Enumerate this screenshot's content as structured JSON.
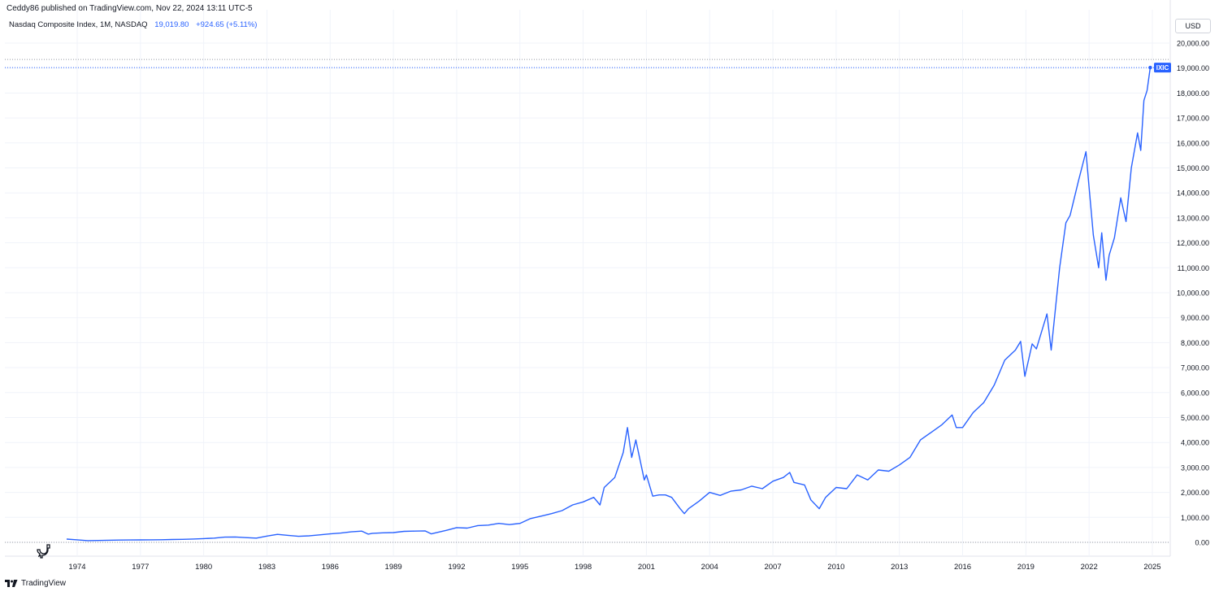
{
  "header": {
    "published_text": "Ceddy86 published on TradingView.com, Nov 22, 2024 13:11 UTC-5"
  },
  "legend": {
    "symbol_text": "Nasdaq Composite Index, 1M, NASDAQ",
    "last_value": "19,019.80",
    "change": "+924.65 (+5.11%)"
  },
  "currency_button": "USD",
  "price_tag": {
    "symbol": "IXIC"
  },
  "footer": {
    "brand": "TradingView"
  },
  "colors": {
    "line": "#2962ff",
    "grid": "#f0f3fa",
    "text": "#131722",
    "accent": "#2962ff"
  },
  "icons": {
    "logo": "tradingview-logo-icon",
    "dino": "dino-icon"
  },
  "chart_data": {
    "type": "line",
    "series": [
      {
        "values": [
          [
            1973.5,
            130
          ],
          [
            1974.0,
            100
          ],
          [
            1974.5,
            70
          ],
          [
            1975.0,
            75
          ],
          [
            1975.5,
            85
          ],
          [
            1976.0,
            90
          ],
          [
            1976.5,
            95
          ],
          [
            1977.0,
            97
          ],
          [
            1977.5,
            100
          ],
          [
            1978.0,
            105
          ],
          [
            1978.5,
            115
          ],
          [
            1979.0,
            120
          ],
          [
            1979.5,
            135
          ],
          [
            1980.0,
            150
          ],
          [
            1980.5,
            170
          ],
          [
            1981.0,
            210
          ],
          [
            1981.5,
            215
          ],
          [
            1982.0,
            190
          ],
          [
            1982.5,
            170
          ],
          [
            1983.0,
            250
          ],
          [
            1983.5,
            320
          ],
          [
            1984.0,
            280
          ],
          [
            1984.5,
            240
          ],
          [
            1985.0,
            260
          ],
          [
            1985.5,
            300
          ],
          [
            1986.0,
            340
          ],
          [
            1986.5,
            370
          ],
          [
            1987.0,
            420
          ],
          [
            1987.5,
            450
          ],
          [
            1987.8,
            330
          ],
          [
            1988.0,
            360
          ],
          [
            1988.5,
            380
          ],
          [
            1989.0,
            390
          ],
          [
            1989.5,
            440
          ],
          [
            1990.0,
            450
          ],
          [
            1990.5,
            460
          ],
          [
            1990.8,
            340
          ],
          [
            1991.0,
            380
          ],
          [
            1991.5,
            480
          ],
          [
            1992.0,
            590
          ],
          [
            1992.5,
            570
          ],
          [
            1993.0,
            670
          ],
          [
            1993.5,
            690
          ],
          [
            1994.0,
            760
          ],
          [
            1994.5,
            710
          ],
          [
            1995.0,
            760
          ],
          [
            1995.5,
            950
          ],
          [
            1996.0,
            1050
          ],
          [
            1996.5,
            1150
          ],
          [
            1997.0,
            1270
          ],
          [
            1997.5,
            1500
          ],
          [
            1998.0,
            1620
          ],
          [
            1998.5,
            1800
          ],
          [
            1998.8,
            1500
          ],
          [
            1999.0,
            2200
          ],
          [
            1999.5,
            2600
          ],
          [
            1999.9,
            3600
          ],
          [
            2000.1,
            4600
          ],
          [
            2000.3,
            3400
          ],
          [
            2000.5,
            4100
          ],
          [
            2000.7,
            3300
          ],
          [
            2000.9,
            2500
          ],
          [
            2001.0,
            2700
          ],
          [
            2001.3,
            1850
          ],
          [
            2001.6,
            1900
          ],
          [
            2001.9,
            1900
          ],
          [
            2002.2,
            1800
          ],
          [
            2002.6,
            1350
          ],
          [
            2002.8,
            1150
          ],
          [
            2003.0,
            1350
          ],
          [
            2003.5,
            1650
          ],
          [
            2004.0,
            2000
          ],
          [
            2004.5,
            1880
          ],
          [
            2005.0,
            2050
          ],
          [
            2005.5,
            2100
          ],
          [
            2006.0,
            2250
          ],
          [
            2006.5,
            2150
          ],
          [
            2007.0,
            2450
          ],
          [
            2007.5,
            2600
          ],
          [
            2007.8,
            2800
          ],
          [
            2008.0,
            2400
          ],
          [
            2008.5,
            2300
          ],
          [
            2008.8,
            1700
          ],
          [
            2009.2,
            1350
          ],
          [
            2009.5,
            1800
          ],
          [
            2010.0,
            2200
          ],
          [
            2010.5,
            2150
          ],
          [
            2011.0,
            2700
          ],
          [
            2011.5,
            2500
          ],
          [
            2012.0,
            2900
          ],
          [
            2012.5,
            2850
          ],
          [
            2013.0,
            3100
          ],
          [
            2013.5,
            3400
          ],
          [
            2014.0,
            4100
          ],
          [
            2014.5,
            4400
          ],
          [
            2015.0,
            4700
          ],
          [
            2015.5,
            5100
          ],
          [
            2015.7,
            4600
          ],
          [
            2016.0,
            4600
          ],
          [
            2016.5,
            5200
          ],
          [
            2017.0,
            5600
          ],
          [
            2017.5,
            6300
          ],
          [
            2018.0,
            7300
          ],
          [
            2018.5,
            7700
          ],
          [
            2018.75,
            8050
          ],
          [
            2018.95,
            6650
          ],
          [
            2019.3,
            7950
          ],
          [
            2019.5,
            7750
          ],
          [
            2020.0,
            9150
          ],
          [
            2020.2,
            7700
          ],
          [
            2020.6,
            11000
          ],
          [
            2020.9,
            12800
          ],
          [
            2021.1,
            13100
          ],
          [
            2021.5,
            14500
          ],
          [
            2021.85,
            15650
          ],
          [
            2022.0,
            14200
          ],
          [
            2022.2,
            12300
          ],
          [
            2022.45,
            11000
          ],
          [
            2022.6,
            12400
          ],
          [
            2022.8,
            10500
          ],
          [
            2022.95,
            11500
          ],
          [
            2023.2,
            12200
          ],
          [
            2023.5,
            13800
          ],
          [
            2023.75,
            12850
          ],
          [
            2024.0,
            15000
          ],
          [
            2024.3,
            16400
          ],
          [
            2024.45,
            15700
          ],
          [
            2024.6,
            17700
          ],
          [
            2024.75,
            18100
          ],
          [
            2024.9,
            19019.8
          ]
        ]
      }
    ],
    "y_ticks": [
      "0.00",
      "1,000.00",
      "2,000.00",
      "3,000.00",
      "4,000.00",
      "5,000.00",
      "6,000.00",
      "7,000.00",
      "8,000.00",
      "9,000.00",
      "10,000.00",
      "11,000.00",
      "12,000.00",
      "13,000.00",
      "14,000.00",
      "15,000.00",
      "16,000.00",
      "17,000.00",
      "18,000.00",
      "19,000.00",
      "20,000.00"
    ],
    "x_ticks": [
      "1974",
      "1977",
      "1980",
      "1983",
      "1986",
      "1989",
      "1992",
      "1995",
      "1998",
      "2001",
      "2004",
      "2007",
      "2010",
      "2013",
      "2016",
      "2019",
      "2022",
      "2025"
    ],
    "ylim": [
      0,
      20000
    ],
    "grid": true,
    "last_value_line": 19019.8
  }
}
